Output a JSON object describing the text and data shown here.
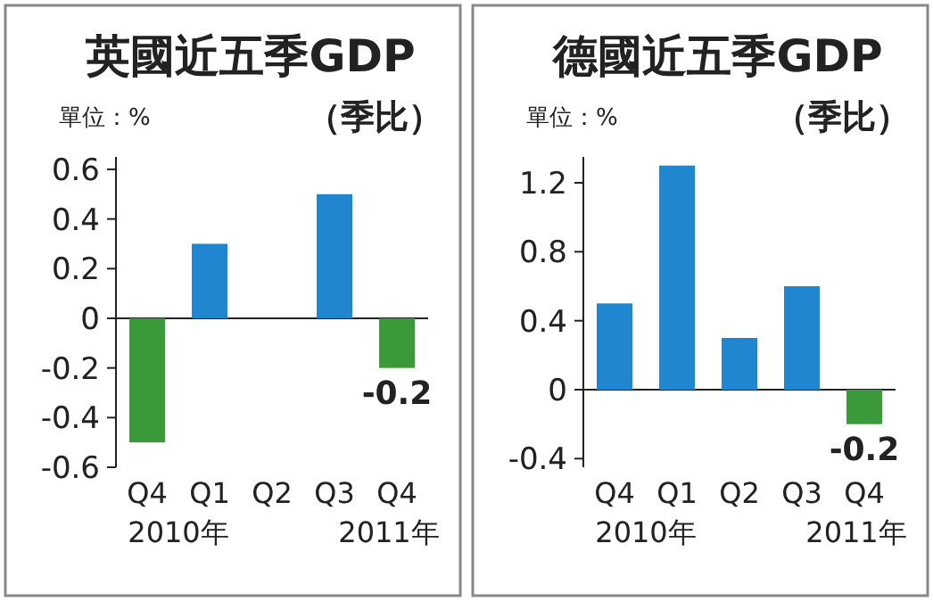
{
  "chart_data": [
    {
      "type": "bar",
      "title": "英國近五季GDP",
      "subtitle": "（季比）",
      "ylabel": "單位：%",
      "categories": [
        "Q4",
        "Q1",
        "Q2",
        "Q3",
        "Q4"
      ],
      "values": [
        -0.5,
        0.3,
        0,
        0.5,
        -0.2
      ],
      "colors": [
        "#3a9a3a",
        "#1f86cf",
        "#1f86cf",
        "#1f86cf",
        "#3a9a3a"
      ],
      "value_labels": [
        null,
        null,
        null,
        null,
        "-0.2"
      ],
      "ylim": [
        -0.6,
        0.65
      ],
      "yticks": [
        -0.6,
        -0.4,
        -0.2,
        0,
        0.2,
        0.4,
        0.6
      ],
      "annotations": [
        "2010年",
        "2011年"
      ]
    },
    {
      "type": "bar",
      "title": "德國近五季GDP",
      "subtitle": "（季比）",
      "ylabel": "單位：%",
      "categories": [
        "Q4",
        "Q1",
        "Q2",
        "Q3",
        "Q4"
      ],
      "values": [
        0.5,
        1.3,
        0.3,
        0.6,
        -0.2
      ],
      "colors": [
        "#1f86cf",
        "#1f86cf",
        "#1f86cf",
        "#1f86cf",
        "#3a9a3a"
      ],
      "value_labels": [
        null,
        null,
        null,
        null,
        "-0.2"
      ],
      "ylim": [
        -0.45,
        1.35
      ],
      "yticks": [
        -0.4,
        0,
        0.4,
        0.8,
        1.2
      ],
      "annotations": [
        "2010年",
        "2011年"
      ]
    }
  ]
}
